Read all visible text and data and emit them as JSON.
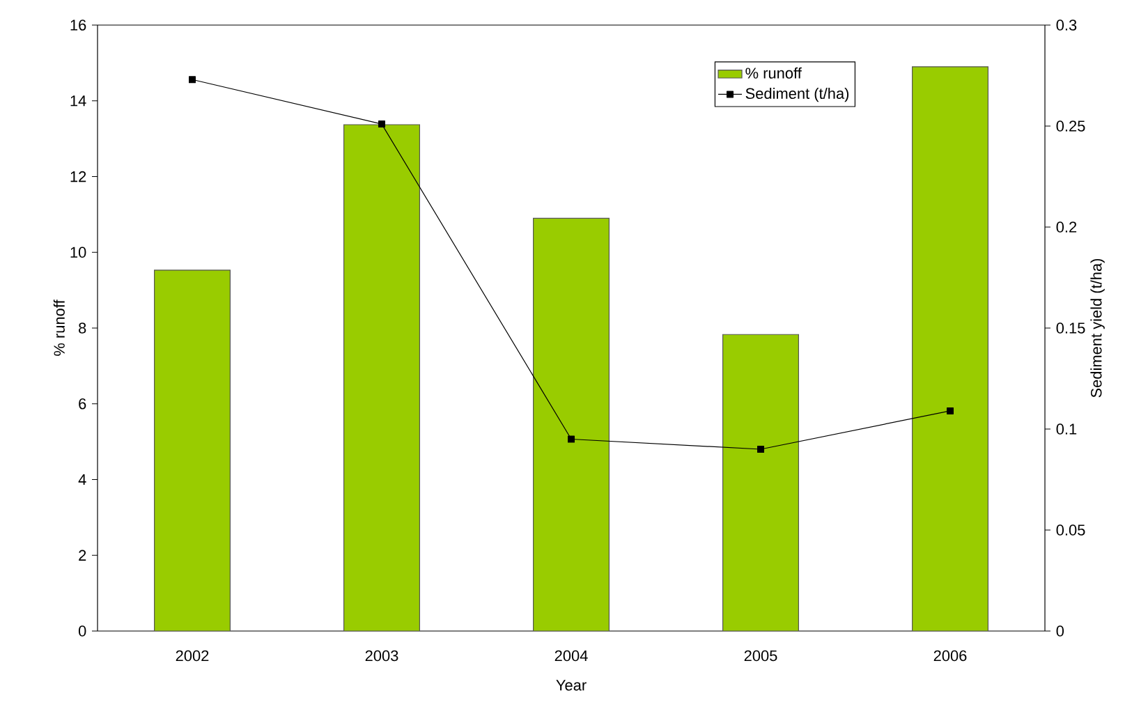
{
  "chart_data": {
    "type": "bar",
    "xlabel": "Year",
    "ylabel": "% runoff",
    "y2label": "Sediment yield (t/ha)",
    "categories": [
      "2002",
      "2003",
      "2004",
      "2005",
      "2006"
    ],
    "series": [
      {
        "name": "% runoff",
        "color": "#99cc00",
        "values": [
          9.53,
          13.37,
          10.9,
          7.83,
          14.9
        ]
      },
      {
        "name": "Sediment (t/ha)",
        "type": "line",
        "axis": "y2",
        "color": "#000000",
        "marker": "square",
        "line_style": "solid",
        "values": [
          0.273,
          0.251,
          0.095,
          0.09,
          0.109
        ]
      }
    ],
    "ylim": [
      0,
      16
    ],
    "yticks": [
      0,
      2,
      4,
      6,
      8,
      10,
      12,
      14,
      16
    ],
    "y2lim": [
      0,
      0.3
    ],
    "y2ticks": [
      0,
      0.05,
      0.1,
      0.15,
      0.2,
      0.25,
      0.3
    ],
    "legend": "top right"
  }
}
